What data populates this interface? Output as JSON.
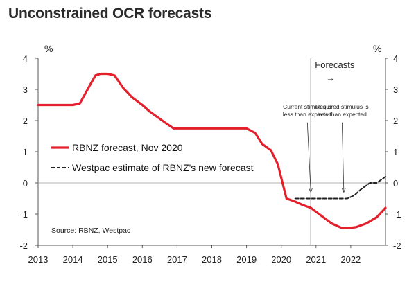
{
  "chart_data": {
    "type": "line",
    "title": "Unconstrained OCR forecasts",
    "ylabel_left": "%",
    "ylabel_right": "%",
    "ylim": [
      -2,
      4
    ],
    "yticks": [
      -2,
      -1,
      0,
      1,
      2,
      3,
      4
    ],
    "xlim": [
      2013,
      2023
    ],
    "xticks": [
      2013,
      2014,
      2015,
      2016,
      2017,
      2018,
      2019,
      2020,
      2021,
      2022
    ],
    "forecast_start": 2020.85,
    "forecast_label": "Forecasts",
    "forecast_arrow": "→",
    "series": [
      {
        "name": "RBNZ forecast, Nov 2020",
        "color": "#e3202b",
        "style": "solid",
        "x": [
          2013.0,
          2014.0,
          2014.2,
          2014.35,
          2014.5,
          2014.65,
          2014.8,
          2015.0,
          2015.2,
          2015.45,
          2015.7,
          2016.0,
          2016.2,
          2016.45,
          2016.7,
          2016.9,
          2017.25,
          2018.0,
          2019.0,
          2019.25,
          2019.45,
          2019.7,
          2019.9,
          2020.15,
          2020.4,
          2020.6,
          2020.85,
          2021.15,
          2021.45,
          2021.75,
          2021.9,
          2022.15,
          2022.45,
          2022.75,
          2023.0
        ],
        "values": [
          2.5,
          2.5,
          2.55,
          2.85,
          3.15,
          3.45,
          3.5,
          3.5,
          3.45,
          3.05,
          2.75,
          2.5,
          2.3,
          2.1,
          1.9,
          1.75,
          1.75,
          1.75,
          1.75,
          1.6,
          1.25,
          1.05,
          0.6,
          -0.5,
          -0.6,
          -0.7,
          -0.8,
          -1.05,
          -1.3,
          -1.45,
          -1.45,
          -1.42,
          -1.3,
          -1.1,
          -0.8
        ]
      },
      {
        "name": "Westpac estimate of RBNZ's new forecast",
        "color": "#222222",
        "style": "dashed",
        "x": [
          2020.4,
          2020.8,
          2021.0,
          2021.5,
          2021.9,
          2022.1,
          2022.3,
          2022.55,
          2022.75,
          2023.0
        ],
        "values": [
          -0.5,
          -0.5,
          -0.5,
          -0.5,
          -0.5,
          -0.4,
          -0.2,
          0.0,
          0.0,
          0.2
        ]
      }
    ],
    "annotations": [
      {
        "text": [
          "Current stimulus is",
          "less than expected"
        ],
        "x": 2020.75,
        "y": 2.25,
        "arrow_to": [
          2020.85,
          -0.3
        ]
      },
      {
        "text": [
          "Required stimulus is",
          "less than expected"
        ],
        "x": 2021.75,
        "y": 2.25,
        "arrow_to": [
          2021.8,
          -0.3
        ]
      }
    ],
    "legend_position": "middle-left",
    "source": "Source: RBNZ, Westpac"
  }
}
